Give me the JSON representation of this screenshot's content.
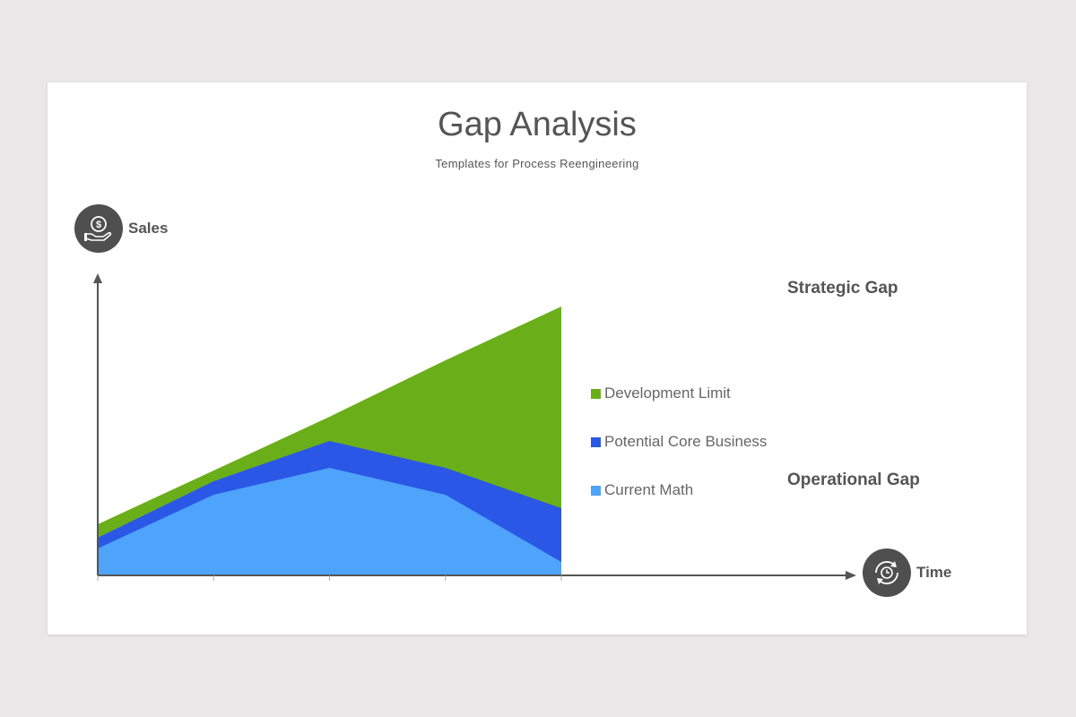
{
  "slide": {
    "title": "Gap Analysis",
    "subtitle": "Templates for Process Reengineering"
  },
  "axes": {
    "y_name": "Sales",
    "x_name": "Time",
    "y_icon": "money-hand-icon",
    "x_icon": "clock-cycle-icon"
  },
  "annotations": {
    "strategic_gap": "Strategic Gap",
    "operational_gap": "Operational Gap"
  },
  "legend": [
    {
      "label": "Development Limit",
      "color": "#6aaf1a"
    },
    {
      "label": "Potential Core Business",
      "color": "#2a57e6"
    },
    {
      "label": "Current Math",
      "color": "#4ea3fb"
    }
  ],
  "chart_data": {
    "type": "area",
    "x": [
      0,
      1,
      2,
      3,
      4
    ],
    "ylim": [
      0,
      100
    ],
    "series": [
      {
        "name": "Development Limit",
        "color": "#6aaf1a",
        "values": [
          19,
          39,
          59,
          80,
          100
        ]
      },
      {
        "name": "Potential Core Business",
        "color": "#2a57e6",
        "values": [
          14,
          35,
          50,
          40,
          25
        ]
      },
      {
        "name": "Current Math",
        "color": "#4ea3fb",
        "values": [
          10,
          30,
          40,
          30,
          5
        ]
      }
    ],
    "grid": false
  }
}
